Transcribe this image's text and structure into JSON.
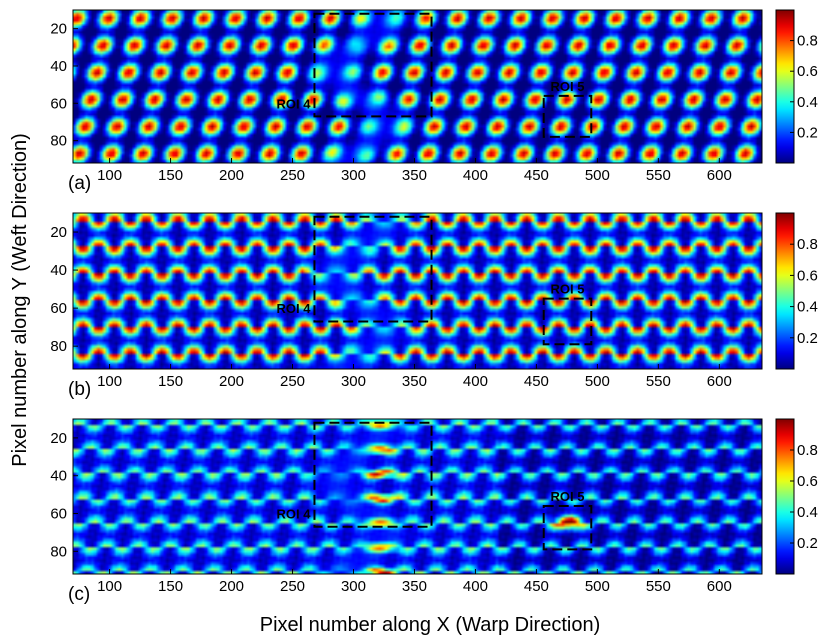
{
  "chart_data": {
    "type": "heatmap",
    "ylabel": "Pixel number along Y (Weft Direction)",
    "xlabel": "Pixel number along X (Warp Direction)",
    "x_ticks": [
      100,
      150,
      200,
      250,
      300,
      350,
      400,
      450,
      500,
      550,
      600
    ],
    "y_ticks": [
      20,
      40,
      60,
      80
    ],
    "colorbar_ticks": [
      "0.2",
      "0.4",
      "0.6",
      "0.8"
    ],
    "colormap": "jet",
    "xlim": [
      70,
      635
    ],
    "ylim": [
      10,
      92
    ],
    "clim": [
      0,
      1
    ],
    "panels": [
      {
        "label": "(a)",
        "pattern": "diagonal-twill",
        "rois": [
          {
            "name": "ROI 4",
            "x0": 268,
            "x1": 364,
            "y0": 12,
            "y1": 67
          },
          {
            "name": "ROI 5",
            "x0": 456,
            "x1": 495,
            "y0": 56,
            "y1": 78
          }
        ]
      },
      {
        "label": "(b)",
        "pattern": "staggered-plain",
        "rois": [
          {
            "name": "ROI 4",
            "x0": 268,
            "x1": 364,
            "y0": 12,
            "y1": 67
          },
          {
            "name": "ROI 5",
            "x0": 456,
            "x1": 495,
            "y0": 55,
            "y1": 79
          }
        ]
      },
      {
        "label": "(c)",
        "pattern": "low-intensity",
        "rois": [
          {
            "name": "ROI 4",
            "x0": 268,
            "x1": 364,
            "y0": 12,
            "y1": 67
          },
          {
            "name": "ROI 5",
            "x0": 456,
            "x1": 495,
            "y0": 56,
            "y1": 79
          }
        ]
      }
    ]
  }
}
